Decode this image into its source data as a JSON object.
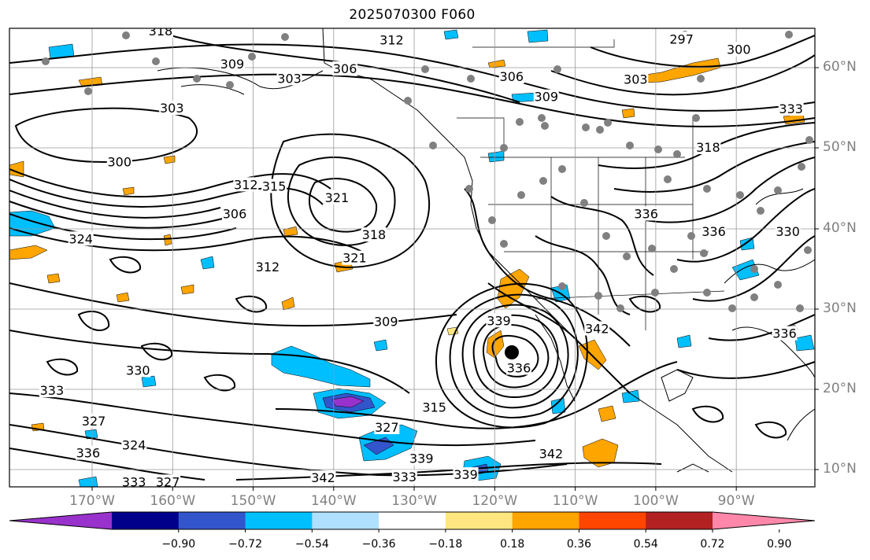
{
  "title": "2025070300 F060",
  "lat_labels": [
    {
      "deg": 60,
      "text": "60°N"
    },
    {
      "deg": 50,
      "text": "50°N"
    },
    {
      "deg": 40,
      "text": "40°N"
    },
    {
      "deg": 30,
      "text": "30°N"
    },
    {
      "deg": 20,
      "text": "20°N"
    },
    {
      "deg": 10,
      "text": "10°N"
    }
  ],
  "lon_labels": [
    {
      "deg": -170,
      "text": "170°W"
    },
    {
      "deg": -160,
      "text": "160°W"
    },
    {
      "deg": -150,
      "text": "150°W"
    },
    {
      "deg": -140,
      "text": "140°W"
    },
    {
      "deg": -130,
      "text": "130°W"
    },
    {
      "deg": -120,
      "text": "120°W"
    },
    {
      "deg": -110,
      "text": "110°W"
    },
    {
      "deg": -100,
      "text": "100°W"
    },
    {
      "deg": -90,
      "text": "90°W"
    }
  ],
  "colorbar": {
    "colors": [
      "#9932cc",
      "#00008b",
      "#3355cc",
      "#00bfff",
      "#b0e0ff",
      "#ffffff",
      "#ffe680",
      "#ffa500",
      "#ff4500",
      "#b22222",
      "#ff88aa"
    ],
    "ticks": [
      "−0.90",
      "−0.72",
      "−0.54",
      "−0.36",
      "−0.18",
      "0.18",
      "0.36",
      "0.54",
      "0.72",
      "0.90"
    ]
  },
  "contour_labels": [
    {
      "text": "318",
      "lon": -161.5,
      "lat": 64.5
    },
    {
      "text": "312",
      "lon": -132.8,
      "lat": 63.4
    },
    {
      "text": "297",
      "lon": -96.8,
      "lat": 63.5
    },
    {
      "text": "300",
      "lon": -89.7,
      "lat": 62.2
    },
    {
      "text": "309",
      "lon": -152.6,
      "lat": 60.4
    },
    {
      "text": "306",
      "lon": -138.6,
      "lat": 59.8
    },
    {
      "text": "303",
      "lon": -145.5,
      "lat": 58.6
    },
    {
      "text": "306",
      "lon": -117.9,
      "lat": 58.8
    },
    {
      "text": "303",
      "lon": -102.5,
      "lat": 58.5
    },
    {
      "text": "309",
      "lon": -113.6,
      "lat": 56.3
    },
    {
      "text": "303",
      "lon": -160.1,
      "lat": 54.9
    },
    {
      "text": "333",
      "lon": -83.2,
      "lat": 54.8
    },
    {
      "text": "318",
      "lon": -93.5,
      "lat": 50.0
    },
    {
      "text": "300",
      "lon": -166.6,
      "lat": 48.2
    },
    {
      "text": "312",
      "lon": -150.9,
      "lat": 45.4
    },
    {
      "text": "315",
      "lon": -147.4,
      "lat": 45.2
    },
    {
      "text": "321",
      "lon": -139.6,
      "lat": 43.8
    },
    {
      "text": "336",
      "lon": -101.2,
      "lat": 41.8
    },
    {
      "text": "336",
      "lon": -92.8,
      "lat": 39.6
    },
    {
      "text": "330",
      "lon": -83.6,
      "lat": 39.6
    },
    {
      "text": "306",
      "lon": -152.3,
      "lat": 41.8
    },
    {
      "text": "318",
      "lon": -135.0,
      "lat": 39.2
    },
    {
      "text": "324",
      "lon": -171.4,
      "lat": 38.7
    },
    {
      "text": "321",
      "lon": -137.4,
      "lat": 36.3
    },
    {
      "text": "312",
      "lon": -148.2,
      "lat": 35.2
    },
    {
      "text": "309",
      "lon": -133.5,
      "lat": 28.4
    },
    {
      "text": "339",
      "lon": -119.5,
      "lat": 28.5
    },
    {
      "text": "342",
      "lon": -107.3,
      "lat": 27.5
    },
    {
      "text": "336",
      "lon": -84.0,
      "lat": 26.9
    },
    {
      "text": "336",
      "lon": -117.0,
      "lat": 22.6
    },
    {
      "text": "330",
      "lon": -164.3,
      "lat": 22.3
    },
    {
      "text": "333",
      "lon": -175.0,
      "lat": 19.8
    },
    {
      "text": "315",
      "lon": -127.5,
      "lat": 17.7
    },
    {
      "text": "327",
      "lon": -169.8,
      "lat": 16.0
    },
    {
      "text": "327",
      "lon": -133.4,
      "lat": 15.2
    },
    {
      "text": "324",
      "lon": -164.8,
      "lat": 13.0
    },
    {
      "text": "339",
      "lon": -129.1,
      "lat": 11.3
    },
    {
      "text": "342",
      "lon": -113.0,
      "lat": 11.9
    },
    {
      "text": "336",
      "lon": -170.5,
      "lat": 12.0
    },
    {
      "text": "342",
      "lon": -141.3,
      "lat": 8.9
    },
    {
      "text": "339",
      "lon": -123.6,
      "lat": 9.3
    },
    {
      "text": "333",
      "lon": -164.8,
      "lat": 8.4
    },
    {
      "text": "327",
      "lon": -160.6,
      "lat": 8.4
    },
    {
      "text": "333",
      "lon": -131.2,
      "lat": 9.0
    }
  ]
}
